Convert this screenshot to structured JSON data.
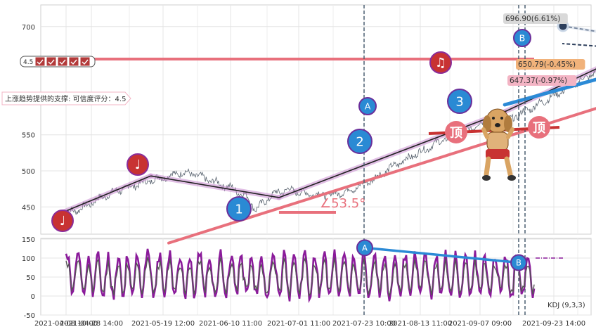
{
  "chart_data": [
    {
      "type": "line",
      "panel": "price",
      "ylim": [
        420,
        720
      ],
      "yticks": [
        450,
        500,
        550,
        700
      ],
      "xticks": [
        "2021-04-08 10:00",
        "2021-04-28 14:00",
        "2021-05-19 12:00",
        "2021-06-10 11:00",
        "2021-07-01 11:00",
        "2021-07-23 10:00",
        "2021-08-13 11:00",
        "2021-09-07 09:00",
        "2021-09-23 14:00"
      ],
      "grid": true,
      "series": [
        {
          "values": [
            [
              0.0,
              443
            ],
            [
              0.55,
              447
            ],
            [
              1.1,
              458
            ],
            [
              1.8,
              470
            ],
            [
              2.5,
              478
            ],
            [
              3.2,
              486
            ],
            [
              3.9,
              492
            ],
            [
              4.5,
              498
            ],
            [
              5.0,
              495
            ],
            [
              5.5,
              488
            ],
            [
              6.0,
              482
            ],
            [
              6.6,
              474
            ],
            [
              7.1,
              462
            ],
            [
              7.4,
              446
            ],
            [
              7.75,
              458
            ],
            [
              8.2,
              470
            ],
            [
              8.7,
              474
            ],
            [
              9.3,
              469
            ],
            [
              9.9,
              467
            ],
            [
              10.5,
              468
            ],
            [
              11.2,
              475
            ],
            [
              11.9,
              487
            ],
            [
              12.6,
              503
            ],
            [
              13.3,
              517
            ],
            [
              14.0,
              530
            ],
            [
              14.7,
              543
            ],
            [
              15.4,
              553
            ],
            [
              16.0,
              563
            ],
            [
              16.5,
              570
            ],
            [
              16.8,
              576
            ],
            [
              17.05,
              564
            ],
            [
              17.4,
              573
            ],
            [
              17.9,
              583
            ],
            [
              18.4,
              592
            ],
            [
              19.0,
              604
            ],
            [
              19.6,
              616
            ],
            [
              20.2,
              628
            ],
            [
              20.8,
              640
            ],
            [
              21.3,
              651
            ],
            [
              21.7,
              660
            ],
            [
              22.1,
              649
            ],
            [
              22.5,
              637
            ],
            [
              22.9,
              633
            ],
            [
              23.3,
              645
            ],
            [
              23.7,
              654
            ],
            [
              24.1,
              661
            ],
            [
              24.5,
              667
            ],
            [
              24.9,
              672
            ],
            [
              25.3,
              676
            ],
            [
              25.7,
              682
            ],
            [
              26.1,
              678
            ],
            [
              26.45,
              666
            ],
            [
              26.8,
              655
            ],
            [
              27.05,
              651
            ],
            [
              27.25,
              657
            ]
          ]
        }
      ],
      "trendlines": [
        {
          "from": [
            -0.1,
            443
          ],
          "to": [
            3.3,
            493
          ]
        },
        {
          "from": [
            3.3,
            493
          ],
          "to": [
            8.3,
            463
          ]
        },
        {
          "from": [
            8.3,
            463
          ],
          "to": [
            17.1,
            582
          ]
        },
        {
          "from": [
            17.1,
            582
          ],
          "to": [
            21.55,
            656
          ]
        },
        {
          "from": [
            21.55,
            656
          ],
          "to": [
            22.9,
            625
          ]
        },
        {
          "from": [
            22.9,
            625
          ],
          "to": [
            25.55,
            685
          ]
        },
        {
          "from": [
            25.55,
            685
          ],
          "to": [
            27.3,
            656
          ]
        }
      ],
      "support_line": {
        "level": 655,
        "label": "上涨趋势提供的支撑: 可信度评分：4.5",
        "score": "4.5"
      },
      "angle_label": "∠53.5°",
      "top_label": "顶",
      "points": {
        "A": {
          "label": "A",
          "x": 17.1,
          "y": 578
        },
        "B": {
          "label": "B",
          "x": 26.1,
          "y": 690
        },
        "1": {
          "label": "1",
          "x": 8.3,
          "y": 451
        },
        "2": {
          "label": "2",
          "x": 16.8,
          "y": 543
        },
        "3": {
          "label": "3",
          "x": 22.9,
          "y": 603
        }
      },
      "price_labels": [
        {
          "text": "696.90(6.61%)"
        },
        {
          "text": "650.79(-0.45%)"
        },
        {
          "text": "647.37(-0.97%)"
        }
      ],
      "markers": [
        "♩",
        "♩",
        "♫"
      ]
    },
    {
      "type": "line",
      "panel": "indicator",
      "ylim": [
        -50,
        150
      ],
      "yticks": [
        -50,
        0,
        50,
        100,
        150
      ],
      "grid": true,
      "legend": "KDJ (9,3,3)",
      "line_points": {
        "A": {
          "label": "A",
          "x": 17.1,
          "y": 127
        },
        "B": {
          "label": "B",
          "x": 26.1,
          "y": 88
        }
      }
    }
  ]
}
